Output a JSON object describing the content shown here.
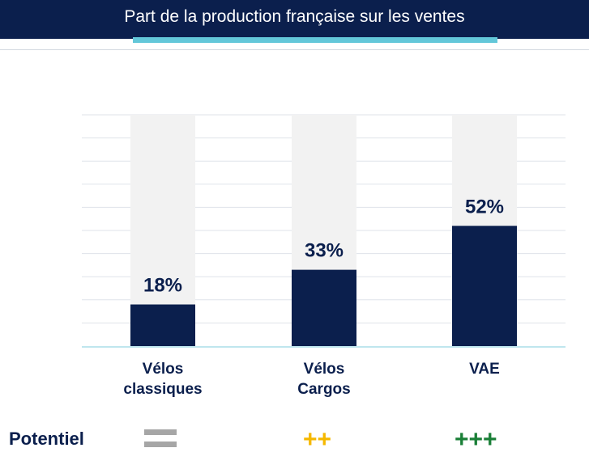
{
  "title": "Part de la production française sur les ventes",
  "chart_data": {
    "type": "bar",
    "title": "Part de la production française sur les ventes",
    "categories": [
      "Vélos classiques",
      "Vélos Cargos",
      "VAE"
    ],
    "category_lines": [
      [
        "Vélos",
        "classiques"
      ],
      [
        "Vélos",
        "Cargos"
      ],
      [
        "VAE"
      ]
    ],
    "values": [
      18,
      33,
      52
    ],
    "value_labels": [
      "18%",
      "33%",
      "52%"
    ],
    "unit": "%",
    "ylim": [
      0,
      100
    ],
    "grid": true,
    "legend": "none",
    "colors": {
      "bar": "#0b1f4d",
      "track": "#f2f2f2",
      "grid": "#dfe3ea",
      "axis": "#bfe6ee"
    }
  },
  "potential": {
    "label": "Potentiel",
    "items": [
      {
        "category": "Vélos classiques",
        "symbol": "=",
        "icon": "equals-icon",
        "color": "#a6a6a6"
      },
      {
        "category": "Vélos Cargos",
        "symbol": "++",
        "icon": "double-plus-icon",
        "color": "#f5b800"
      },
      {
        "category": "VAE",
        "symbol": "+++",
        "icon": "triple-plus-icon",
        "color": "#1a7f37"
      }
    ]
  },
  "colors": {
    "header": "#0b1f4d",
    "accent": "#63c7d9"
  }
}
